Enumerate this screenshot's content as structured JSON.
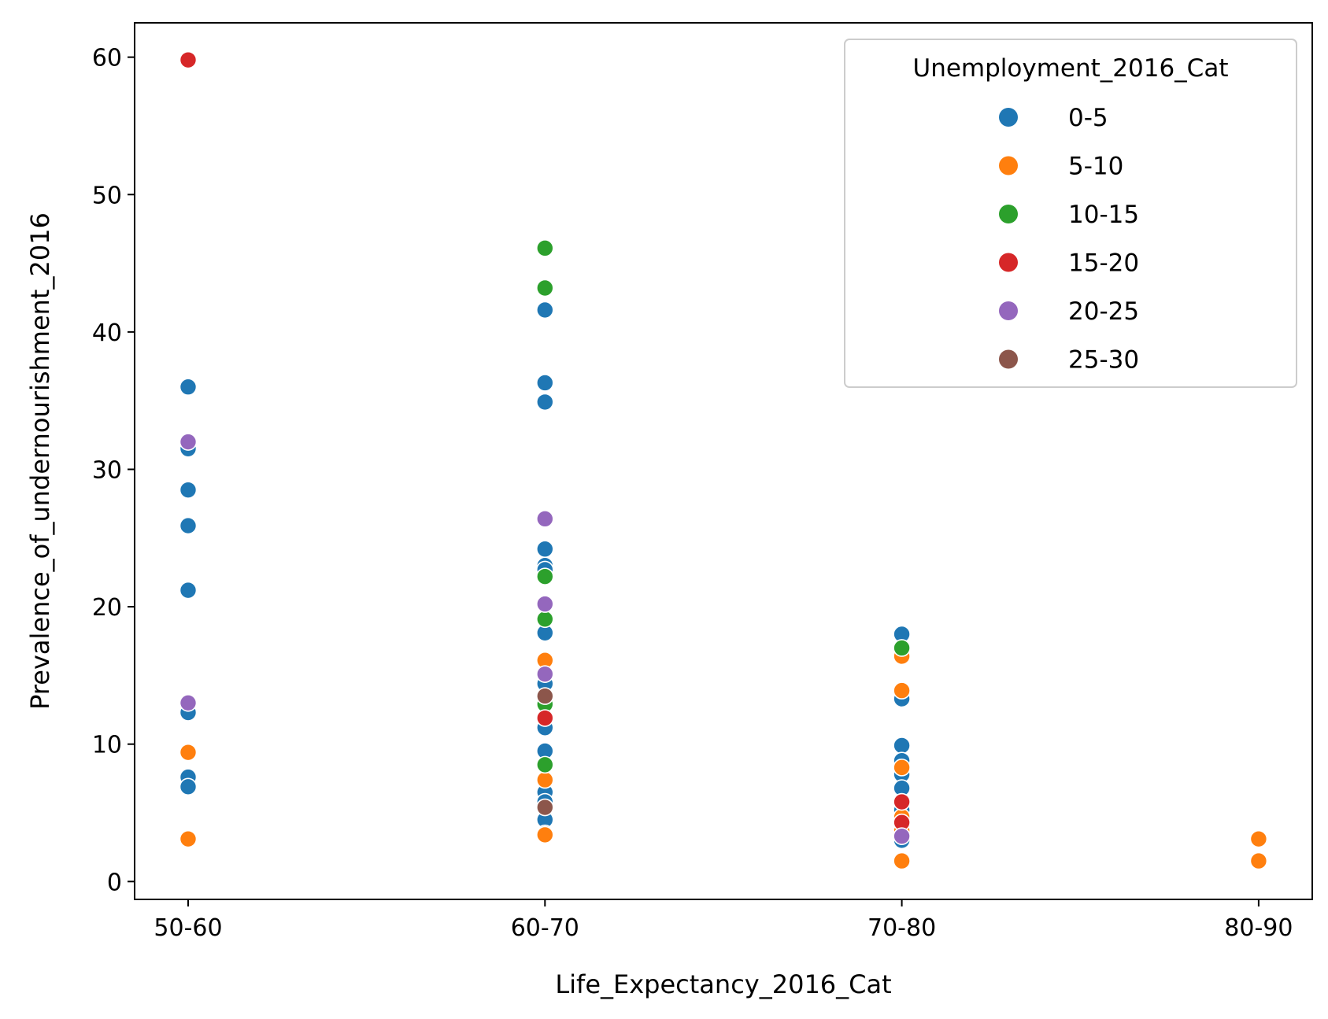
{
  "chart_data": {
    "type": "scatter",
    "xlabel": "Life_Expectancy_2016_Cat",
    "ylabel": "Prevalence_of_undernourishment_2016",
    "categories": [
      "50-60",
      "60-70",
      "70-80",
      "80-90"
    ],
    "ylim": [
      -1.3,
      62.5
    ],
    "yticks": [
      0,
      10,
      20,
      30,
      40,
      50,
      60
    ],
    "grid": false,
    "legend": {
      "title": "Unemployment_2016_Cat",
      "placement": "top-right"
    },
    "series": [
      {
        "name": "0-5",
        "color": "#1f77b4",
        "points": [
          {
            "x": "50-60",
            "y": 36.0
          },
          {
            "x": "50-60",
            "y": 31.5
          },
          {
            "x": "50-60",
            "y": 28.5
          },
          {
            "x": "50-60",
            "y": 25.9
          },
          {
            "x": "50-60",
            "y": 21.2
          },
          {
            "x": "50-60",
            "y": 12.3
          },
          {
            "x": "50-60",
            "y": 7.6
          },
          {
            "x": "50-60",
            "y": 6.9
          },
          {
            "x": "60-70",
            "y": 41.6
          },
          {
            "x": "60-70",
            "y": 36.3
          },
          {
            "x": "60-70",
            "y": 34.9
          },
          {
            "x": "60-70",
            "y": 24.2
          },
          {
            "x": "60-70",
            "y": 23.0
          },
          {
            "x": "60-70",
            "y": 22.7
          },
          {
            "x": "60-70",
            "y": 18.1
          },
          {
            "x": "60-70",
            "y": 14.4
          },
          {
            "x": "60-70",
            "y": 11.2
          },
          {
            "x": "60-70",
            "y": 9.5
          },
          {
            "x": "60-70",
            "y": 6.5
          },
          {
            "x": "60-70",
            "y": 5.8
          },
          {
            "x": "60-70",
            "y": 4.5
          },
          {
            "x": "60-70",
            "y": 3.5
          },
          {
            "x": "70-80",
            "y": 18.0
          },
          {
            "x": "70-80",
            "y": 13.3
          },
          {
            "x": "70-80",
            "y": 9.9
          },
          {
            "x": "70-80",
            "y": 8.8
          },
          {
            "x": "70-80",
            "y": 7.8
          },
          {
            "x": "70-80",
            "y": 6.8
          },
          {
            "x": "70-80",
            "y": 5.2
          },
          {
            "x": "70-80",
            "y": 3.0
          }
        ]
      },
      {
        "name": "5-10",
        "color": "#ff7f0e",
        "points": [
          {
            "x": "50-60",
            "y": 9.4
          },
          {
            "x": "50-60",
            "y": 3.1
          },
          {
            "x": "60-70",
            "y": 16.1
          },
          {
            "x": "60-70",
            "y": 7.4
          },
          {
            "x": "60-70",
            "y": 3.4
          },
          {
            "x": "70-80",
            "y": 16.4
          },
          {
            "x": "70-80",
            "y": 13.9
          },
          {
            "x": "70-80",
            "y": 8.3
          },
          {
            "x": "70-80",
            "y": 4.7
          },
          {
            "x": "70-80",
            "y": 3.7
          },
          {
            "x": "70-80",
            "y": 1.5
          },
          {
            "x": "80-90",
            "y": 3.1
          },
          {
            "x": "80-90",
            "y": 1.5
          }
        ]
      },
      {
        "name": "10-15",
        "color": "#2ca02c",
        "points": [
          {
            "x": "60-70",
            "y": 46.1
          },
          {
            "x": "60-70",
            "y": 43.2
          },
          {
            "x": "60-70",
            "y": 22.2
          },
          {
            "x": "60-70",
            "y": 19.1
          },
          {
            "x": "60-70",
            "y": 12.9
          },
          {
            "x": "60-70",
            "y": 8.5
          },
          {
            "x": "70-80",
            "y": 17.0
          }
        ]
      },
      {
        "name": "15-20",
        "color": "#d62728",
        "points": [
          {
            "x": "50-60",
            "y": 59.8
          },
          {
            "x": "60-70",
            "y": 11.9
          },
          {
            "x": "70-80",
            "y": 5.8
          },
          {
            "x": "70-80",
            "y": 4.3
          }
        ]
      },
      {
        "name": "20-25",
        "color": "#9467bd",
        "points": [
          {
            "x": "50-60",
            "y": 32.0
          },
          {
            "x": "50-60",
            "y": 13.0
          },
          {
            "x": "60-70",
            "y": 26.4
          },
          {
            "x": "60-70",
            "y": 20.2
          },
          {
            "x": "60-70",
            "y": 15.1
          },
          {
            "x": "70-80",
            "y": 3.3
          }
        ]
      },
      {
        "name": "25-30",
        "color": "#8c564b",
        "points": [
          {
            "x": "60-70",
            "y": 13.5
          },
          {
            "x": "60-70",
            "y": 5.4
          }
        ]
      }
    ]
  }
}
